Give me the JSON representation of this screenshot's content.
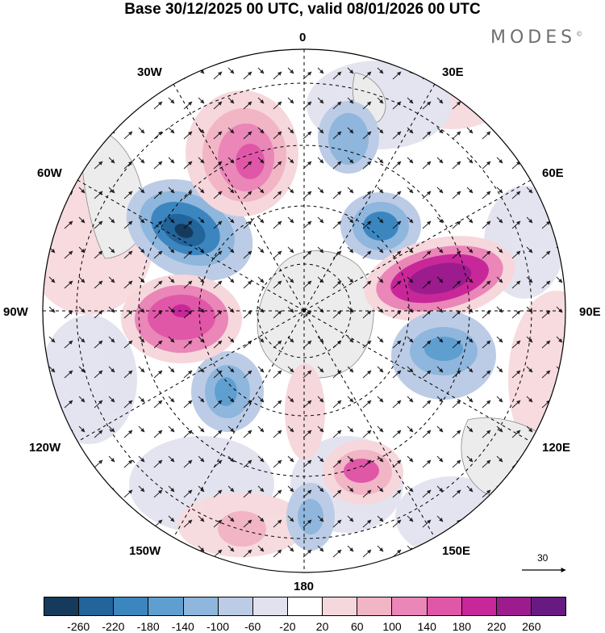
{
  "title": "Base 30/12/2025 00 UTC, valid 08/01/2026 00 UTC",
  "logo": "MODES",
  "logo_mark": "©",
  "longitude_labels": {
    "lon_0": "0",
    "lon_30e": "30E",
    "lon_60e": "60E",
    "lon_90e": "90E",
    "lon_120e": "120E",
    "lon_150e": "150E",
    "lon_180": "180",
    "lon_150w": "150W",
    "lon_120w": "120W",
    "lon_90w": "90W",
    "lon_60w": "60W",
    "lon_30w": "30W"
  },
  "reference_vector": {
    "label": "30"
  },
  "colorbar": {
    "ticks": [
      "-260",
      "-220",
      "-180",
      "-140",
      "-100",
      "-60",
      "-20",
      "20",
      "60",
      "100",
      "140",
      "180",
      "220",
      "260"
    ],
    "colors": [
      "#163a5c",
      "#23649a",
      "#3c86c0",
      "#5f9fd0",
      "#8fb6dc",
      "#bccce6",
      "#e1e1ef",
      "#ffffff",
      "#f6d7dc",
      "#f2b5c6",
      "#ea86b8",
      "#e057a8",
      "#c8279a",
      "#9c1c8e",
      "#671a82"
    ]
  },
  "anomaly_centers": [
    {
      "sign": "negative",
      "level": -220,
      "region": "Southern Atlantic / Weddell Sea sector"
    },
    {
      "sign": "positive",
      "level": 180,
      "region": "South Atlantic near 15W"
    },
    {
      "sign": "negative",
      "level": -140,
      "region": "Near 20E"
    },
    {
      "sign": "negative",
      "level": -180,
      "region": "Near 40E coast"
    },
    {
      "sign": "positive",
      "level": 220,
      "region": "Indian Ocean sector near 70E"
    },
    {
      "sign": "negative",
      "level": -140,
      "region": "Near 100E"
    },
    {
      "sign": "positive",
      "level": 140,
      "region": "South of Australia near 150E"
    },
    {
      "sign": "negative",
      "level": -100,
      "region": "Ross Sea sector near 170W"
    },
    {
      "sign": "negative",
      "level": -140,
      "region": "Amundsen Sea near 115W"
    },
    {
      "sign": "positive",
      "level": 180,
      "region": "Bellingshausen sector near 85W"
    }
  ]
}
